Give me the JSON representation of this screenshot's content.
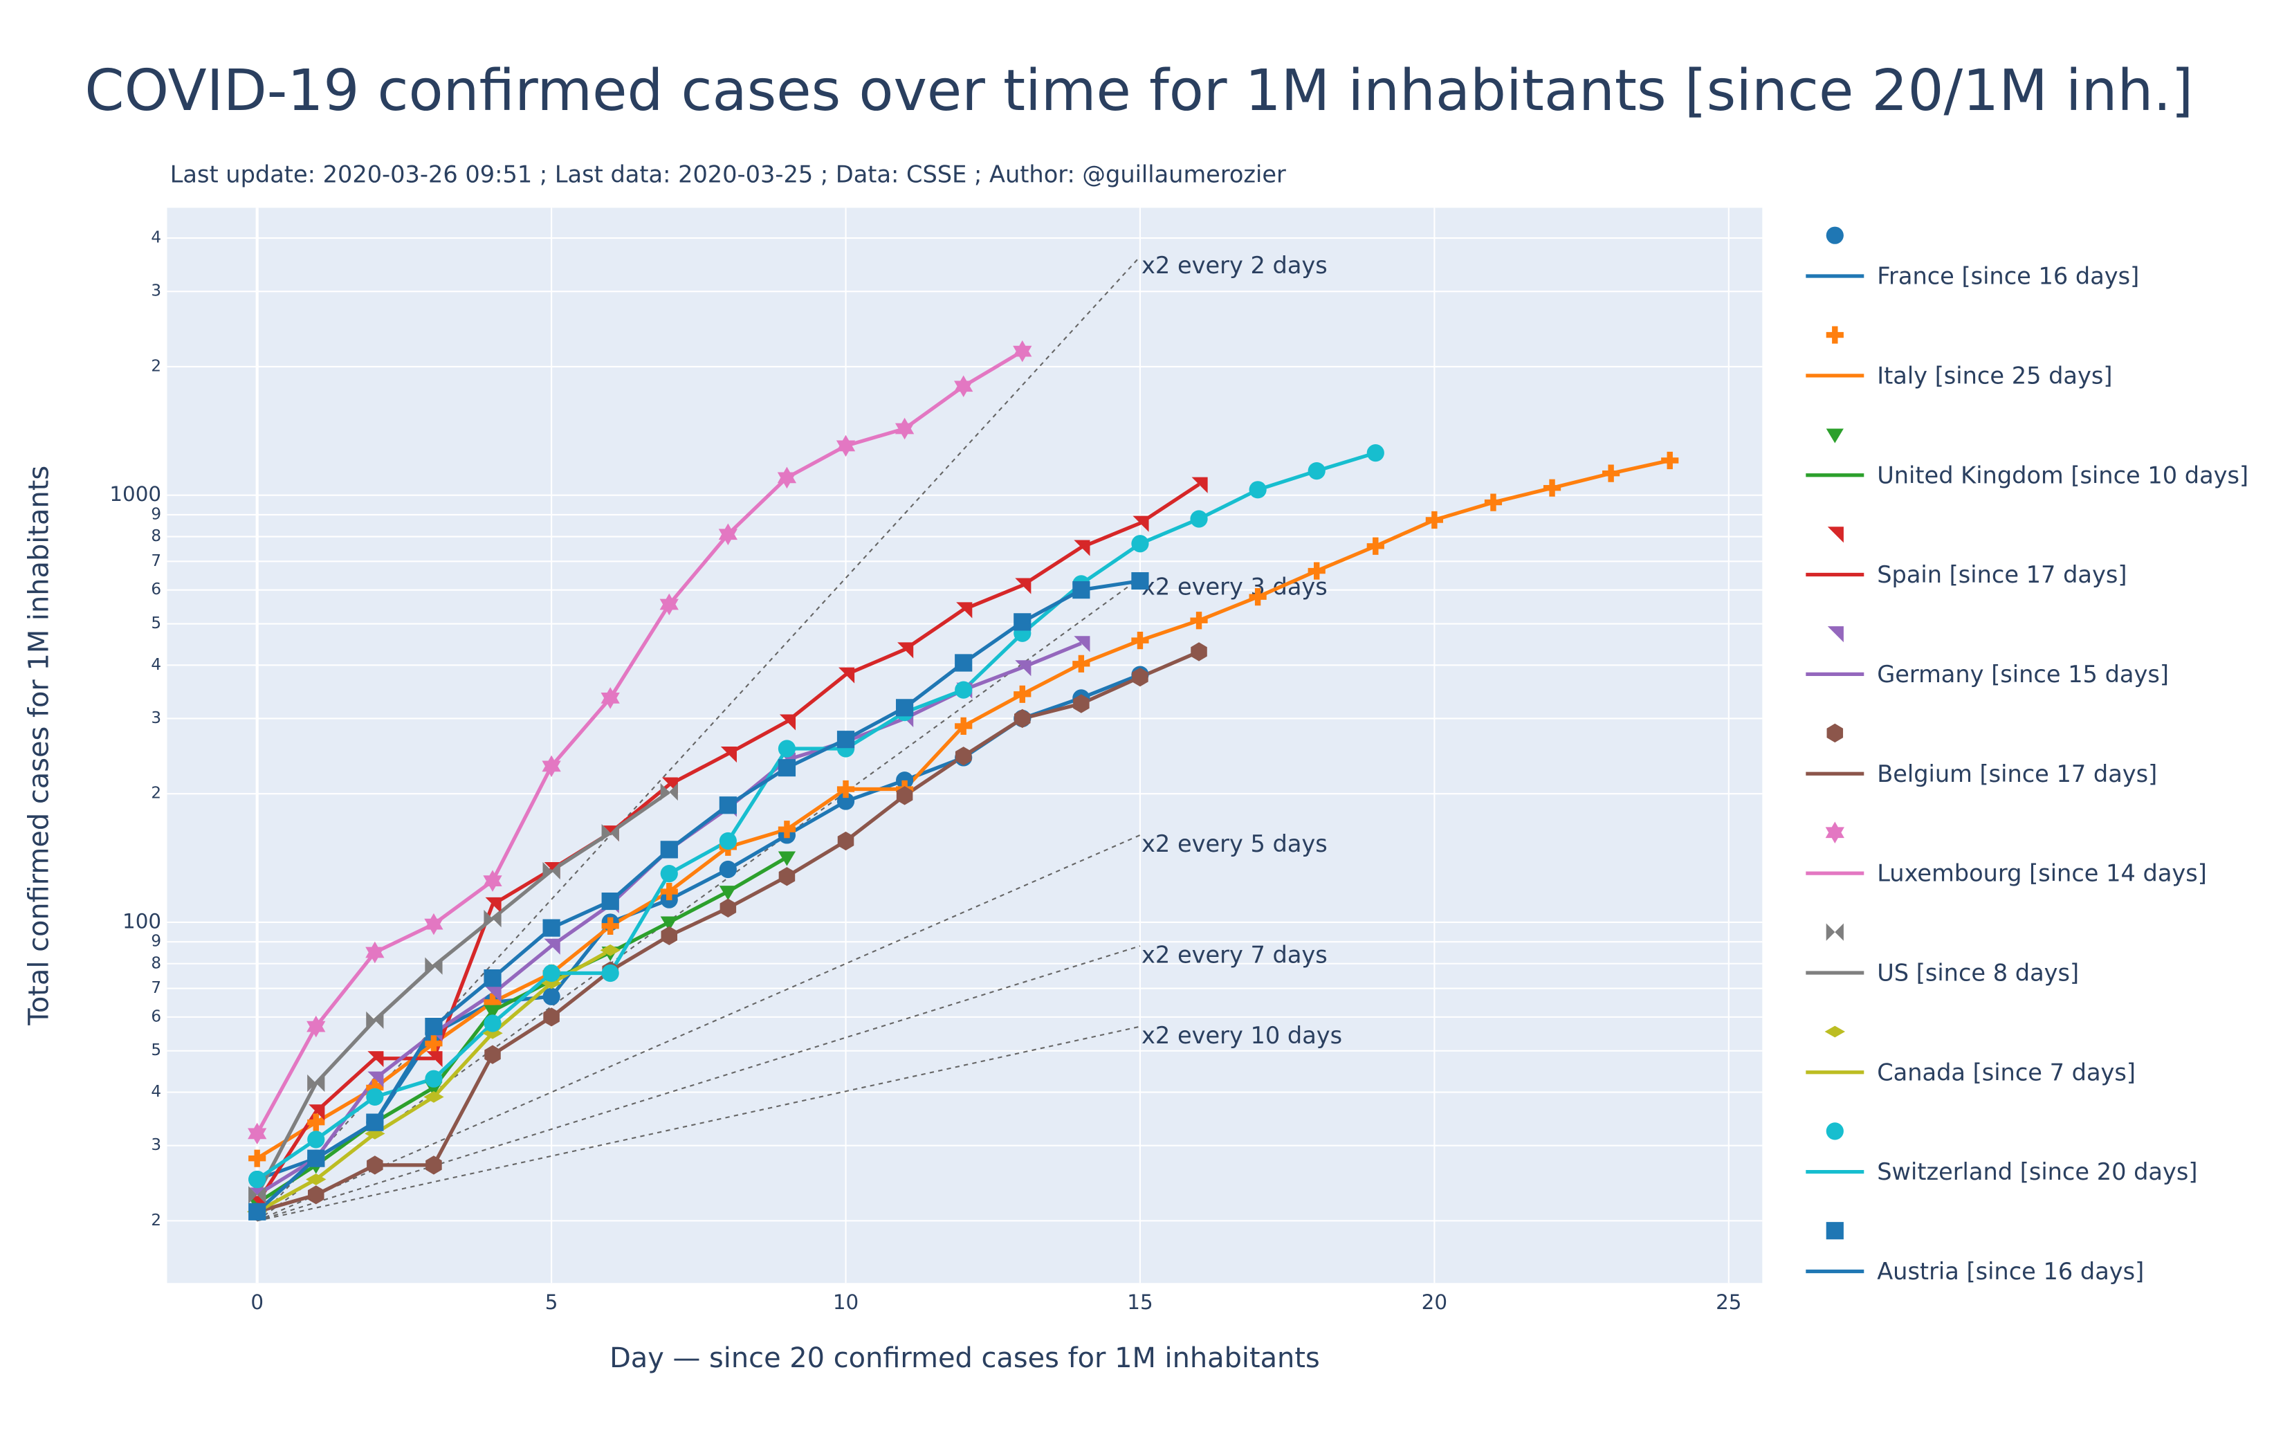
{
  "chart_data": {
    "type": "line",
    "title": "COVID-19 confirmed cases over time for 1M inhabitants  [since 20/1M inh.]",
    "subtitle": "Last update: 2020-03-26 09:51 ; Last data: 2020-03-25 ; Data: CSSE ; Author: @guillaumerozier",
    "x_label": "Day — since 20 confirmed cases for 1M inhabitants",
    "y_label": "Total confirmed cases for 1M inhabitants",
    "log_y": true,
    "grid": true,
    "xlim": [
      -1.53,
      25.57
    ],
    "xticks": [
      0,
      5,
      10,
      15,
      20,
      25
    ],
    "ylim": [
      14.3,
      4710
    ],
    "yticks": [
      {
        "value": 20,
        "label": "2"
      },
      {
        "value": 30,
        "label": "3"
      },
      {
        "value": 40,
        "label": "4"
      },
      {
        "value": 50,
        "label": "5"
      },
      {
        "value": 60,
        "label": "6"
      },
      {
        "value": 70,
        "label": "7"
      },
      {
        "value": 80,
        "label": "8"
      },
      {
        "value": 90,
        "label": "9"
      },
      100,
      {
        "value": 2000,
        "label": "2"
      },
      {
        "value": 3000,
        "label": "3"
      },
      {
        "value": 4000,
        "label": "4"
      },
      {
        "value": 200,
        "label": "2"
      },
      {
        "value": 300,
        "label": "3"
      },
      {
        "value": 400,
        "label": "4"
      },
      {
        "value": 500,
        "label": "5"
      },
      {
        "value": 600,
        "label": "6"
      },
      {
        "value": 700,
        "label": "7"
      },
      {
        "value": 800,
        "label": "8"
      },
      {
        "value": 900,
        "label": "9"
      },
      1000
    ],
    "x": [
      0,
      1,
      2,
      3,
      4,
      5,
      6,
      7,
      8,
      9,
      10,
      11,
      12,
      13,
      14,
      15,
      16,
      17,
      18,
      19,
      20,
      21,
      22,
      23,
      24
    ],
    "series": [
      {
        "name": "France [since 16 days]",
        "color": "#1f77b4",
        "marker": "circle",
        "values": [
          25,
          28,
          34,
          55,
          65,
          67,
          100,
          113,
          133,
          160,
          192,
          215,
          243,
          300,
          335,
          380,
          null,
          null,
          null,
          null,
          null,
          null,
          null,
          null,
          null
        ]
      },
      {
        "name": "Italy [since 25 days]",
        "color": "#ff7f0e",
        "marker": "cross",
        "values": [
          28,
          34,
          41,
          52,
          65,
          76,
          98,
          118,
          150,
          165,
          205,
          205,
          288,
          342,
          403,
          457,
          509,
          578,
          665,
          760,
          875,
          962,
          1040,
          1125,
          1206
        ]
      },
      {
        "name": "United Kingdom [since 10 days]",
        "color": "#2ca02c",
        "marker": "triangle-down",
        "values": [
          22,
          27,
          34,
          41,
          62,
          73,
          85,
          100,
          118,
          142,
          null,
          null,
          null,
          null,
          null,
          null,
          null,
          null,
          null,
          null,
          null,
          null,
          null,
          null,
          null
        ]
      },
      {
        "name": "Spain [since 17 days]",
        "color": "#d62728",
        "marker": "triangle-ne",
        "values": [
          22,
          36,
          48,
          48,
          110,
          133,
          162,
          210,
          248,
          295,
          380,
          435,
          540,
          615,
          755,
          860,
          1060,
          null,
          null,
          null,
          null,
          null,
          null,
          null,
          null
        ]
      },
      {
        "name": "Germany [since 15 days]",
        "color": "#9467bd",
        "marker": "triangle-sw",
        "values": [
          23,
          28,
          43,
          55,
          68,
          88,
          110,
          148,
          185,
          240,
          265,
          300,
          350,
          395,
          450,
          null,
          null,
          null,
          null,
          null,
          null,
          null,
          null,
          null,
          null
        ]
      },
      {
        "name": "Belgium [since 17 days]",
        "color": "#8c564b",
        "marker": "hexagon",
        "values": [
          21,
          23,
          27,
          27,
          49,
          60,
          77,
          93,
          108,
          128,
          155,
          198,
          245,
          300,
          325,
          375,
          430,
          null,
          null,
          null,
          null,
          null,
          null,
          null,
          null
        ]
      },
      {
        "name": "Luxembourg [since 14 days]",
        "color": "#e377c2",
        "marker": "hexagram",
        "values": [
          32,
          57,
          85,
          99,
          125,
          232,
          335,
          555,
          810,
          1099,
          1305,
          1432,
          1799,
          2173,
          null,
          null,
          null,
          null,
          null,
          null,
          null,
          null,
          null,
          null,
          null
        ]
      },
      {
        "name": "US [since 8 days]",
        "color": "#7f7f7f",
        "marker": "bowtie",
        "values": [
          23,
          42,
          59,
          79,
          102,
          132,
          162,
          202,
          null,
          null,
          null,
          null,
          null,
          null,
          null,
          null,
          null,
          null,
          null,
          null,
          null,
          null,
          null,
          null,
          null
        ]
      },
      {
        "name": "Canada [since 7 days]",
        "color": "#bcbd22",
        "marker": "diamond-wide",
        "values": [
          21,
          25,
          32,
          39,
          55,
          72,
          86,
          null,
          null,
          null,
          null,
          null,
          null,
          null,
          null,
          null,
          null,
          null,
          null,
          null,
          null,
          null,
          null,
          null,
          null
        ]
      },
      {
        "name": "Switzerland [since 20 days]",
        "color": "#17becf",
        "marker": "circle",
        "values": [
          25,
          31,
          39,
          43,
          58,
          76,
          76,
          130,
          155,
          255,
          255,
          310,
          350,
          475,
          620,
          770,
          880,
          1030,
          1140,
          1256,
          null,
          null,
          null,
          null,
          null
        ]
      },
      {
        "name": "Austria [since 16 days]",
        "color": "#1f77b4",
        "marker": "square",
        "values": [
          21,
          28,
          34,
          57,
          74,
          97,
          112,
          148,
          188,
          230,
          268,
          318,
          405,
          505,
          600,
          630,
          null,
          null,
          null,
          null,
          null,
          null,
          null,
          null,
          null
        ]
      }
    ],
    "reference_lines": [
      {
        "name": "x2 every 2 days",
        "x": [
          0,
          15
        ],
        "values": [
          20,
          3620
        ]
      },
      {
        "name": "x2 every 3 days",
        "x": [
          0,
          15
        ],
        "values": [
          20,
          640
        ]
      },
      {
        "name": "x2 every 5 days",
        "x": [
          0,
          15
        ],
        "values": [
          20,
          160
        ]
      },
      {
        "name": "x2 every 7 days",
        "x": [
          0,
          15
        ],
        "values": [
          20,
          88
        ]
      },
      {
        "name": "x2 every 10 days",
        "x": [
          0,
          15
        ],
        "values": [
          20,
          57
        ]
      }
    ]
  }
}
